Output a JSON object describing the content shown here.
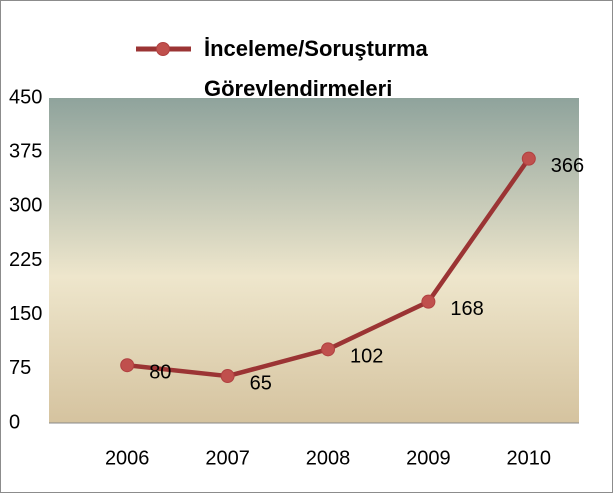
{
  "chart_data": {
    "type": "line",
    "categories": [
      "2006",
      "2007",
      "2008",
      "2009",
      "2010"
    ],
    "series": [
      {
        "name": "İnceleme/Soruşturma Görevlendirmeleri",
        "color": "#9b3434",
        "values": [
          80,
          65,
          102,
          168,
          366
        ]
      }
    ],
    "ylim": [
      0,
      450
    ],
    "yticks": [
      0,
      75,
      150,
      225,
      300,
      375,
      450
    ],
    "grid": false,
    "legend": "top"
  }
}
